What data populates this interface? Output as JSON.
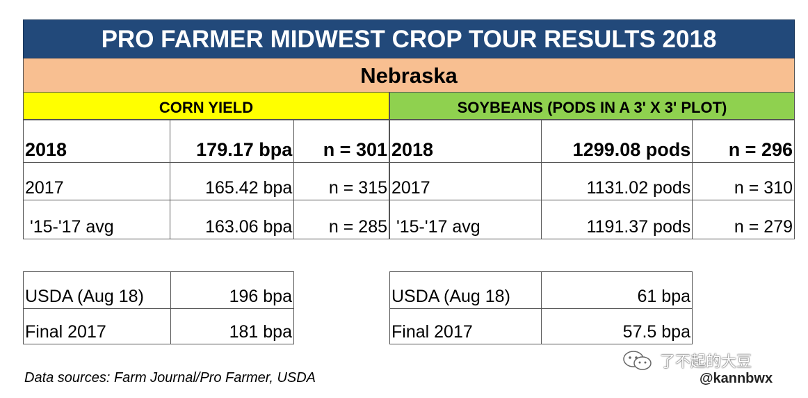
{
  "title": "PRO FARMER MIDWEST CROP TOUR RESULTS 2018",
  "state": "Nebraska",
  "corn": {
    "header": "CORN YIELD",
    "rows": [
      {
        "label": "2018",
        "value": "179.17 bpa",
        "n": "n = 301"
      },
      {
        "label": "2017",
        "value": "165.42 bpa",
        "n": "n = 315"
      },
      {
        "label": " '15-'17 avg",
        "value": "163.06 bpa",
        "n": "n = 285"
      }
    ],
    "reference": [
      {
        "label": "USDA (Aug 18)",
        "value": "196 bpa"
      },
      {
        "label": "Final 2017",
        "value": "181 bpa"
      }
    ]
  },
  "soybeans": {
    "header": "SOYBEANS (PODS IN A 3' X 3' PLOT)",
    "rows": [
      {
        "label": "2018",
        "value": "1299.08 pods",
        "n": "n = 296"
      },
      {
        "label": "2017",
        "value": "1131.02 pods",
        "n": "n = 310"
      },
      {
        "label": " '15-'17 avg",
        "value": "1191.37 pods",
        "n": "n = 279"
      }
    ],
    "reference": [
      {
        "label": "USDA (Aug 18)",
        "value": "61 bpa"
      },
      {
        "label": "Final 2017",
        "value": "57.5 bpa"
      }
    ]
  },
  "footnote": "Data sources: Farm Journal/Pro Farmer, USDA",
  "watermark": {
    "brand": "了不起的大豆",
    "handle": "@kannbwx",
    "icon": "wechat-icon"
  },
  "colors": {
    "title_bg": "#22497a",
    "state_bg": "#f8bf91",
    "corn_bg": "#ffff00",
    "soy_bg": "#8fd14f"
  }
}
